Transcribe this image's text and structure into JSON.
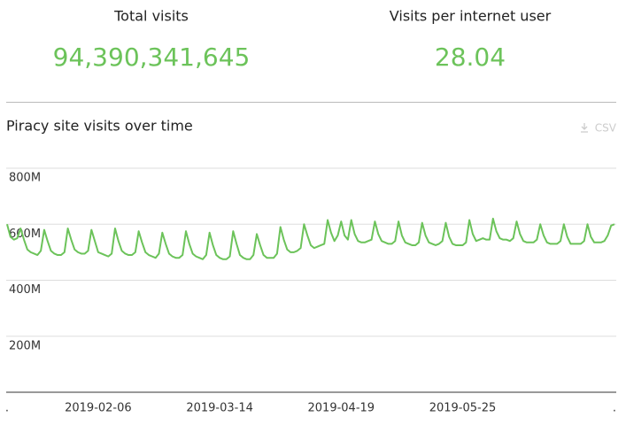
{
  "stats": [
    {
      "label": "Total visits",
      "value": "94,390,341,645"
    },
    {
      "label": "Visits per internet user",
      "value": "28.04"
    }
  ],
  "chart_data": {
    "type": "line",
    "title": "Piracy site visits over time",
    "download_label": "CSV",
    "color": "#6cc35a",
    "x": [
      "2019-01-10",
      "2019-01-11",
      "2019-01-12",
      "2019-01-13",
      "2019-01-14",
      "2019-01-15",
      "2019-01-16",
      "2019-01-17",
      "2019-01-18",
      "2019-01-19",
      "2019-01-20",
      "2019-01-21",
      "2019-01-22",
      "2019-01-23",
      "2019-01-24",
      "2019-01-25",
      "2019-01-26",
      "2019-01-27",
      "2019-01-28",
      "2019-01-29",
      "2019-01-30",
      "2019-01-31",
      "2019-02-01",
      "2019-02-02",
      "2019-02-03",
      "2019-02-04",
      "2019-02-05",
      "2019-02-06",
      "2019-02-07",
      "2019-02-08",
      "2019-02-09",
      "2019-02-10",
      "2019-02-11",
      "2019-02-12",
      "2019-02-13",
      "2019-02-14",
      "2019-02-15",
      "2019-02-16",
      "2019-02-17",
      "2019-02-18",
      "2019-02-19",
      "2019-02-20",
      "2019-02-21",
      "2019-02-22",
      "2019-02-23",
      "2019-02-24",
      "2019-02-25",
      "2019-02-26",
      "2019-02-27",
      "2019-02-28",
      "2019-03-01",
      "2019-03-02",
      "2019-03-03",
      "2019-03-04",
      "2019-03-05",
      "2019-03-06",
      "2019-03-07",
      "2019-03-08",
      "2019-03-09",
      "2019-03-10",
      "2019-03-11",
      "2019-03-12",
      "2019-03-13",
      "2019-03-14",
      "2019-03-15",
      "2019-03-16",
      "2019-03-17",
      "2019-03-18",
      "2019-03-19",
      "2019-03-20",
      "2019-03-21",
      "2019-03-22",
      "2019-03-23",
      "2019-03-24",
      "2019-03-25",
      "2019-03-26",
      "2019-03-27",
      "2019-03-28",
      "2019-03-29",
      "2019-03-30",
      "2019-03-31",
      "2019-04-01",
      "2019-04-02",
      "2019-04-03",
      "2019-04-04",
      "2019-04-05",
      "2019-04-06",
      "2019-04-07",
      "2019-04-08",
      "2019-04-09",
      "2019-04-10",
      "2019-04-11",
      "2019-04-12",
      "2019-04-13",
      "2019-04-14",
      "2019-04-15",
      "2019-04-16",
      "2019-04-17",
      "2019-04-18",
      "2019-04-19",
      "2019-04-20",
      "2019-04-21",
      "2019-04-22",
      "2019-04-23",
      "2019-04-24",
      "2019-04-25",
      "2019-04-26",
      "2019-04-27",
      "2019-04-28",
      "2019-04-29",
      "2019-04-30",
      "2019-05-01",
      "2019-05-02",
      "2019-05-03",
      "2019-05-04",
      "2019-05-05",
      "2019-05-06",
      "2019-05-07",
      "2019-05-08",
      "2019-05-09",
      "2019-05-10",
      "2019-05-11",
      "2019-05-12",
      "2019-05-13",
      "2019-05-14",
      "2019-05-15",
      "2019-05-16",
      "2019-05-17",
      "2019-05-18",
      "2019-05-19",
      "2019-05-20",
      "2019-05-21",
      "2019-05-22",
      "2019-05-23",
      "2019-05-24",
      "2019-05-25",
      "2019-05-26",
      "2019-05-27",
      "2019-05-28",
      "2019-05-29",
      "2019-05-30",
      "2019-05-31",
      "2019-06-01",
      "2019-06-02",
      "2019-06-03",
      "2019-06-04",
      "2019-06-05",
      "2019-06-06",
      "2019-06-07",
      "2019-06-08",
      "2019-06-09",
      "2019-06-10",
      "2019-06-11",
      "2019-06-12",
      "2019-06-13",
      "2019-06-14",
      "2019-06-15",
      "2019-06-16",
      "2019-06-17",
      "2019-06-18",
      "2019-06-19",
      "2019-06-20",
      "2019-06-21",
      "2019-06-22",
      "2019-06-23",
      "2019-06-24",
      "2019-06-25",
      "2019-06-26",
      "2019-06-27",
      "2019-06-28",
      "2019-06-29",
      "2019-06-30",
      "2019-07-01",
      "2019-07-02",
      "2019-07-03",
      "2019-07-04",
      "2019-07-05",
      "2019-07-06",
      "2019-07-07",
      "2019-07-08",
      "2019-07-09"
    ],
    "values": [
      600000000.0,
      555000000.0,
      545000000.0,
      550000000.0,
      585000000.0,
      545000000.0,
      510000000.0,
      500000000.0,
      495000000.0,
      490000000.0,
      505000000.0,
      580000000.0,
      540000000.0,
      505000000.0,
      495000000.0,
      490000000.0,
      490000000.0,
      500000000.0,
      585000000.0,
      545000000.0,
      510000000.0,
      500000000.0,
      495000000.0,
      495000000.0,
      505000000.0,
      580000000.0,
      540000000.0,
      500000000.0,
      495000000.0,
      490000000.0,
      485000000.0,
      495000000.0,
      585000000.0,
      540000000.0,
      505000000.0,
      495000000.0,
      490000000.0,
      490000000.0,
      500000000.0,
      575000000.0,
      535000000.0,
      500000000.0,
      490000000.0,
      485000000.0,
      480000000.0,
      495000000.0,
      570000000.0,
      530000000.0,
      495000000.0,
      485000000.0,
      480000000.0,
      480000000.0,
      490000000.0,
      575000000.0,
      530000000.0,
      495000000.0,
      485000000.0,
      480000000.0,
      475000000.0,
      490000000.0,
      570000000.0,
      525000000.0,
      490000000.0,
      480000000.0,
      475000000.0,
      475000000.0,
      485000000.0,
      575000000.0,
      530000000.0,
      490000000.0,
      480000000.0,
      475000000.0,
      475000000.0,
      490000000.0,
      565000000.0,
      525000000.0,
      490000000.0,
      480000000.0,
      480000000.0,
      480000000.0,
      495000000.0,
      590000000.0,
      545000000.0,
      510000000.0,
      500000000.0,
      500000000.0,
      505000000.0,
      515000000.0,
      600000000.0,
      560000000.0,
      525000000.0,
      515000000.0,
      520000000.0,
      525000000.0,
      530000000.0,
      615000000.0,
      570000000.0,
      540000000.0,
      560000000.0,
      610000000.0,
      560000000.0,
      545000000.0,
      615000000.0,
      565000000.0,
      540000000.0,
      535000000.0,
      535000000.0,
      540000000.0,
      545000000.0,
      610000000.0,
      565000000.0,
      540000000.0,
      535000000.0,
      530000000.0,
      530000000.0,
      540000000.0,
      610000000.0,
      560000000.0,
      535000000.0,
      530000000.0,
      525000000.0,
      525000000.0,
      535000000.0,
      605000000.0,
      560000000.0,
      535000000.0,
      530000000.0,
      525000000.0,
      530000000.0,
      540000000.0,
      605000000.0,
      555000000.0,
      530000000.0,
      525000000.0,
      525000000.0,
      525000000.0,
      535000000.0,
      615000000.0,
      565000000.0,
      540000000.0,
      545000000.0,
      550000000.0,
      545000000.0,
      545000000.0,
      620000000.0,
      575000000.0,
      550000000.0,
      545000000.0,
      545000000.0,
      540000000.0,
      550000000.0,
      610000000.0,
      565000000.0,
      540000000.0,
      535000000.0,
      535000000.0,
      535000000.0,
      545000000.0,
      600000000.0,
      560000000.0,
      535000000.0,
      530000000.0,
      530000000.0,
      530000000.0,
      540000000.0,
      600000000.0,
      555000000.0,
      530000000.0,
      530000000.0,
      530000000.0,
      530000000.0,
      540000000.0,
      600000000.0,
      555000000.0,
      535000000.0,
      535000000.0,
      535000000.0,
      540000000.0,
      560000000.0,
      595000000.0,
      600000000.0
    ],
    "xlim": [
      "2019-01-10",
      "2019-07-09"
    ],
    "xticks": [
      {
        "value": "2019-01-10",
        "label": "."
      },
      "2019-02-06",
      "2019-03-14",
      "2019-04-19",
      "2019-05-25",
      {
        "value": "2019-07-09",
        "label": "."
      }
    ],
    "ylim": [
      0,
      800000000
    ],
    "yticks": [
      {
        "value": 200000000,
        "label": "200M"
      },
      {
        "value": 400000000,
        "label": "400M"
      },
      {
        "value": 600000000,
        "label": "600M"
      },
      {
        "value": 800000000,
        "label": "800M"
      }
    ],
    "grid": true
  }
}
